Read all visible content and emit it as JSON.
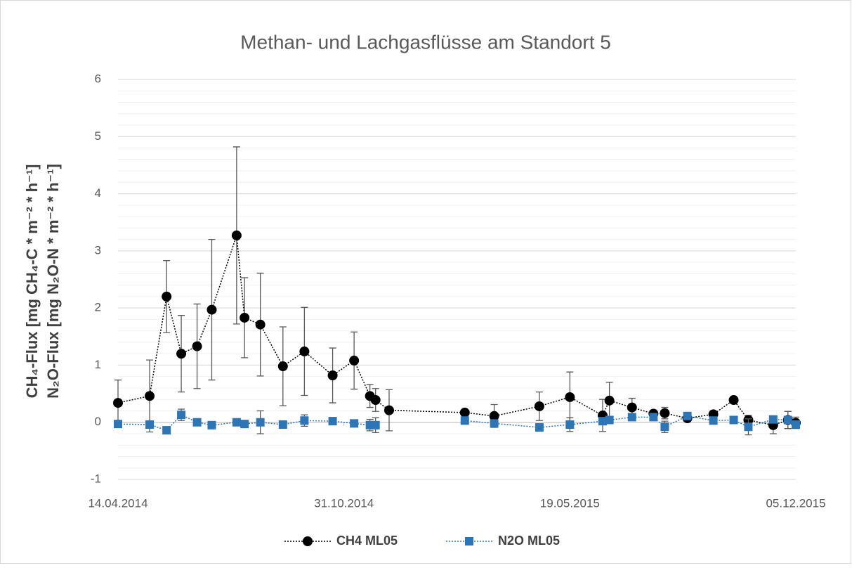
{
  "chart_data": {
    "type": "line",
    "title": "Methan- und Lachgasflüsse am Standort 5",
    "y_label_lines": [
      "CH₄-Flux [mg CH₄-C * m⁻² * h⁻¹]",
      "N₂O-Flux [mg N₂O-N * m⁻² * h⁻¹]"
    ],
    "x": [
      "2014-04-14",
      "2014-05-12",
      "2014-05-27",
      "2014-06-09",
      "2014-06-23",
      "2014-07-06",
      "2014-07-28",
      "2014-08-04",
      "2014-08-18",
      "2014-09-07",
      "2014-09-26",
      "2014-10-21",
      "2014-11-09",
      "2014-11-23",
      "2014-11-28",
      "2014-12-10",
      "2015-02-15",
      "2015-03-13",
      "2015-04-22",
      "2015-05-19",
      "2015-06-17",
      "2015-06-23",
      "2015-07-13",
      "2015-08-01",
      "2015-08-11",
      "2015-08-31",
      "2015-09-23",
      "2015-10-11",
      "2015-10-24",
      "2015-11-15",
      "2015-11-28",
      "2015-12-05"
    ],
    "series": [
      {
        "name": "CH4 ML05",
        "color": "#000000",
        "marker": "circle",
        "values": [
          0.34,
          0.46,
          2.2,
          1.2,
          1.33,
          1.97,
          3.27,
          1.83,
          1.71,
          0.98,
          1.24,
          0.82,
          1.08,
          0.46,
          0.39,
          0.21,
          0.17,
          0.11,
          0.28,
          0.44,
          0.12,
          0.38,
          0.26,
          0.15,
          0.16,
          0.07,
          0.14,
          0.39,
          0.04,
          -0.05,
          0.04,
          -0.01
        ],
        "errors": [
          0.4,
          0.63,
          0.63,
          0.67,
          0.74,
          1.23,
          1.55,
          0.7,
          0.9,
          0.69,
          0.77,
          0.48,
          0.5,
          0.2,
          0.2,
          0.36,
          0.05,
          0.2,
          0.25,
          0.44,
          0.28,
          0.32,
          0.16,
          0.06,
          0.1,
          0.03,
          0.05,
          0.05,
          0.08,
          0.15,
          0.15,
          0.1
        ]
      },
      {
        "name": "N2O ML05",
        "color": "#2e75b6",
        "marker": "square",
        "values": [
          -0.03,
          -0.04,
          -0.14,
          0.13,
          0.0,
          -0.05,
          0.0,
          -0.03,
          0.0,
          -0.04,
          0.03,
          0.02,
          -0.02,
          -0.05,
          -0.05,
          null,
          0.03,
          -0.02,
          -0.09,
          -0.04,
          0.02,
          0.04,
          0.09,
          0.09,
          -0.08,
          0.11,
          0.03,
          0.04,
          -0.08,
          0.05,
          0.04,
          -0.04
        ],
        "errors": [
          0.03,
          0.05,
          0.05,
          0.1,
          0.05,
          0.04,
          0.04,
          0.04,
          0.2,
          0.04,
          0.1,
          0.04,
          0.04,
          0.1,
          0.13,
          null,
          0.04,
          0.04,
          0.04,
          0.12,
          0.04,
          0.05,
          0.04,
          0.04,
          0.1,
          0.04,
          0.04,
          0.04,
          0.14,
          0.04,
          0.15,
          0.04
        ]
      }
    ],
    "xlim": [
      "2014-04-14",
      "2015-12-05"
    ],
    "xticks": [
      {
        "value": "2014-04-14",
        "label": "14.04.2014"
      },
      {
        "value": "2014-10-31",
        "label": "31.10.2014"
      },
      {
        "value": "2015-05-19",
        "label": "19.05.2015"
      },
      {
        "value": "2015-12-05",
        "label": "05.12.2015"
      }
    ],
    "ylim": [
      -1,
      6
    ],
    "yticks": [
      -1,
      0,
      1,
      2,
      3,
      4,
      5,
      6
    ],
    "yminor": 0.2,
    "grid": true,
    "legend": "bottom"
  }
}
